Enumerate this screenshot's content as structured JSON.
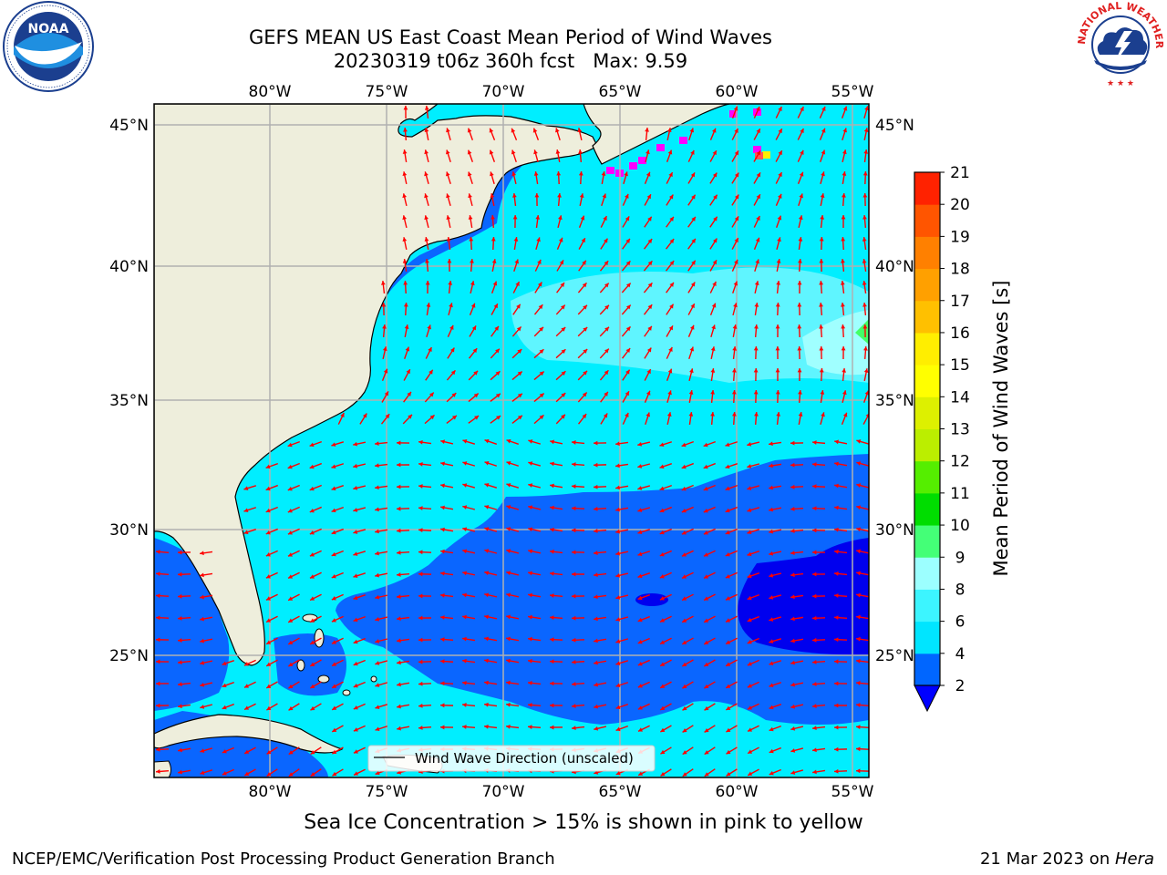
{
  "header": {
    "title_line1": "GEFS MEAN US East Coast Mean Period of Wind Waves",
    "title_line2": "20230319 t06z 360h fcst   Max: 9.59"
  },
  "logos": {
    "left": {
      "icon": "noaa-logo-icon",
      "text": "NOAA"
    },
    "right": {
      "icon": "national-weather-service-logo-icon",
      "text": "NATIONAL WEATHER SERVICE"
    }
  },
  "map": {
    "lon_labels": [
      "80°W",
      "75°W",
      "70°W",
      "65°W",
      "60°W",
      "55°W"
    ],
    "lat_labels": [
      "45°N",
      "40°N",
      "35°N",
      "30°N",
      "25°N"
    ],
    "legend_label": "Wind Wave Direction (unscaled)",
    "colors": {
      "land": "#eeeedc",
      "coast": "#000000",
      "arrow": "#ff0000",
      "grid": "#b0b0b0"
    }
  },
  "colorbar": {
    "label": "Mean Period of Wind Waves [s]",
    "ticks": [
      "2",
      "4",
      "6",
      "8",
      "9",
      "10",
      "11",
      "12",
      "13",
      "14",
      "15",
      "16",
      "17",
      "18",
      "19",
      "20",
      "21"
    ],
    "colors": [
      "#0066ff",
      "#00e5ff",
      "#3cf5ff",
      "#9cffff",
      "#44ff77",
      "#00dd00",
      "#55ee00",
      "#bbee00",
      "#ddf000",
      "#ffff00",
      "#ffee00",
      "#ffc000",
      "#ffa000",
      "#ff8000",
      "#ff5500",
      "#ff2200",
      "#ff0000"
    ],
    "under_color": "#0000ff"
  },
  "footer": {
    "note": "Sea Ice Concentration > 15% is shown in pink to yellow",
    "left": "NCEP/EMC/Verification Post Processing Product Generation Branch",
    "date": "21 Mar 2023 on ",
    "host": "Hera"
  }
}
